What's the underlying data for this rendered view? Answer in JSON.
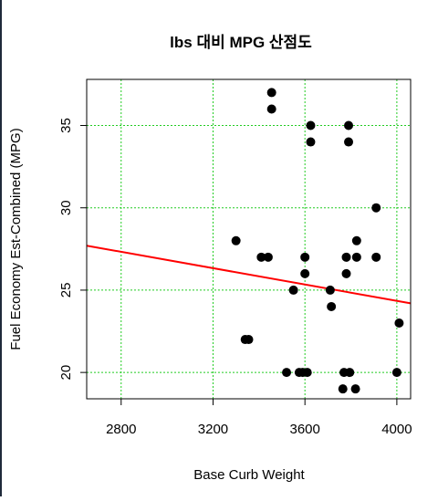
{
  "chart_data": {
    "type": "scatter",
    "title": "lbs 대비 MPG 산점도",
    "xlabel": "Base Curb Weight",
    "ylabel": "Fuel Economy Est-Combined (MPG)",
    "xlim": [
      2650,
      4060
    ],
    "ylim": [
      18.4,
      37.8
    ],
    "xticks": [
      2800,
      3200,
      3600,
      4000
    ],
    "yticks": [
      20,
      25,
      30,
      35
    ],
    "grid": true,
    "grid_color": "#22cc22",
    "point_color": "#000000",
    "line_color": "#ff0000",
    "regression_line": {
      "x": [
        2650,
        4060
      ],
      "y": [
        27.7,
        24.2
      ]
    },
    "points": [
      {
        "x": 3300,
        "y": 28
      },
      {
        "x": 3340,
        "y": 22
      },
      {
        "x": 3355,
        "y": 22
      },
      {
        "x": 3410,
        "y": 27
      },
      {
        "x": 3440,
        "y": 27
      },
      {
        "x": 3455,
        "y": 37
      },
      {
        "x": 3455,
        "y": 36
      },
      {
        "x": 3520,
        "y": 20
      },
      {
        "x": 3550,
        "y": 25
      },
      {
        "x": 3575,
        "y": 20
      },
      {
        "x": 3590,
        "y": 20
      },
      {
        "x": 3600,
        "y": 27
      },
      {
        "x": 3600,
        "y": 26
      },
      {
        "x": 3610,
        "y": 20
      },
      {
        "x": 3625,
        "y": 35
      },
      {
        "x": 3625,
        "y": 34
      },
      {
        "x": 3710,
        "y": 25
      },
      {
        "x": 3715,
        "y": 24
      },
      {
        "x": 3765,
        "y": 19
      },
      {
        "x": 3770,
        "y": 20
      },
      {
        "x": 3780,
        "y": 27
      },
      {
        "x": 3780,
        "y": 26
      },
      {
        "x": 3790,
        "y": 35
      },
      {
        "x": 3790,
        "y": 34
      },
      {
        "x": 3795,
        "y": 20
      },
      {
        "x": 3820,
        "y": 19
      },
      {
        "x": 3825,
        "y": 28
      },
      {
        "x": 3825,
        "y": 27
      },
      {
        "x": 3910,
        "y": 30
      },
      {
        "x": 3910,
        "y": 27
      },
      {
        "x": 4000,
        "y": 20
      },
      {
        "x": 4010,
        "y": 23
      }
    ]
  }
}
